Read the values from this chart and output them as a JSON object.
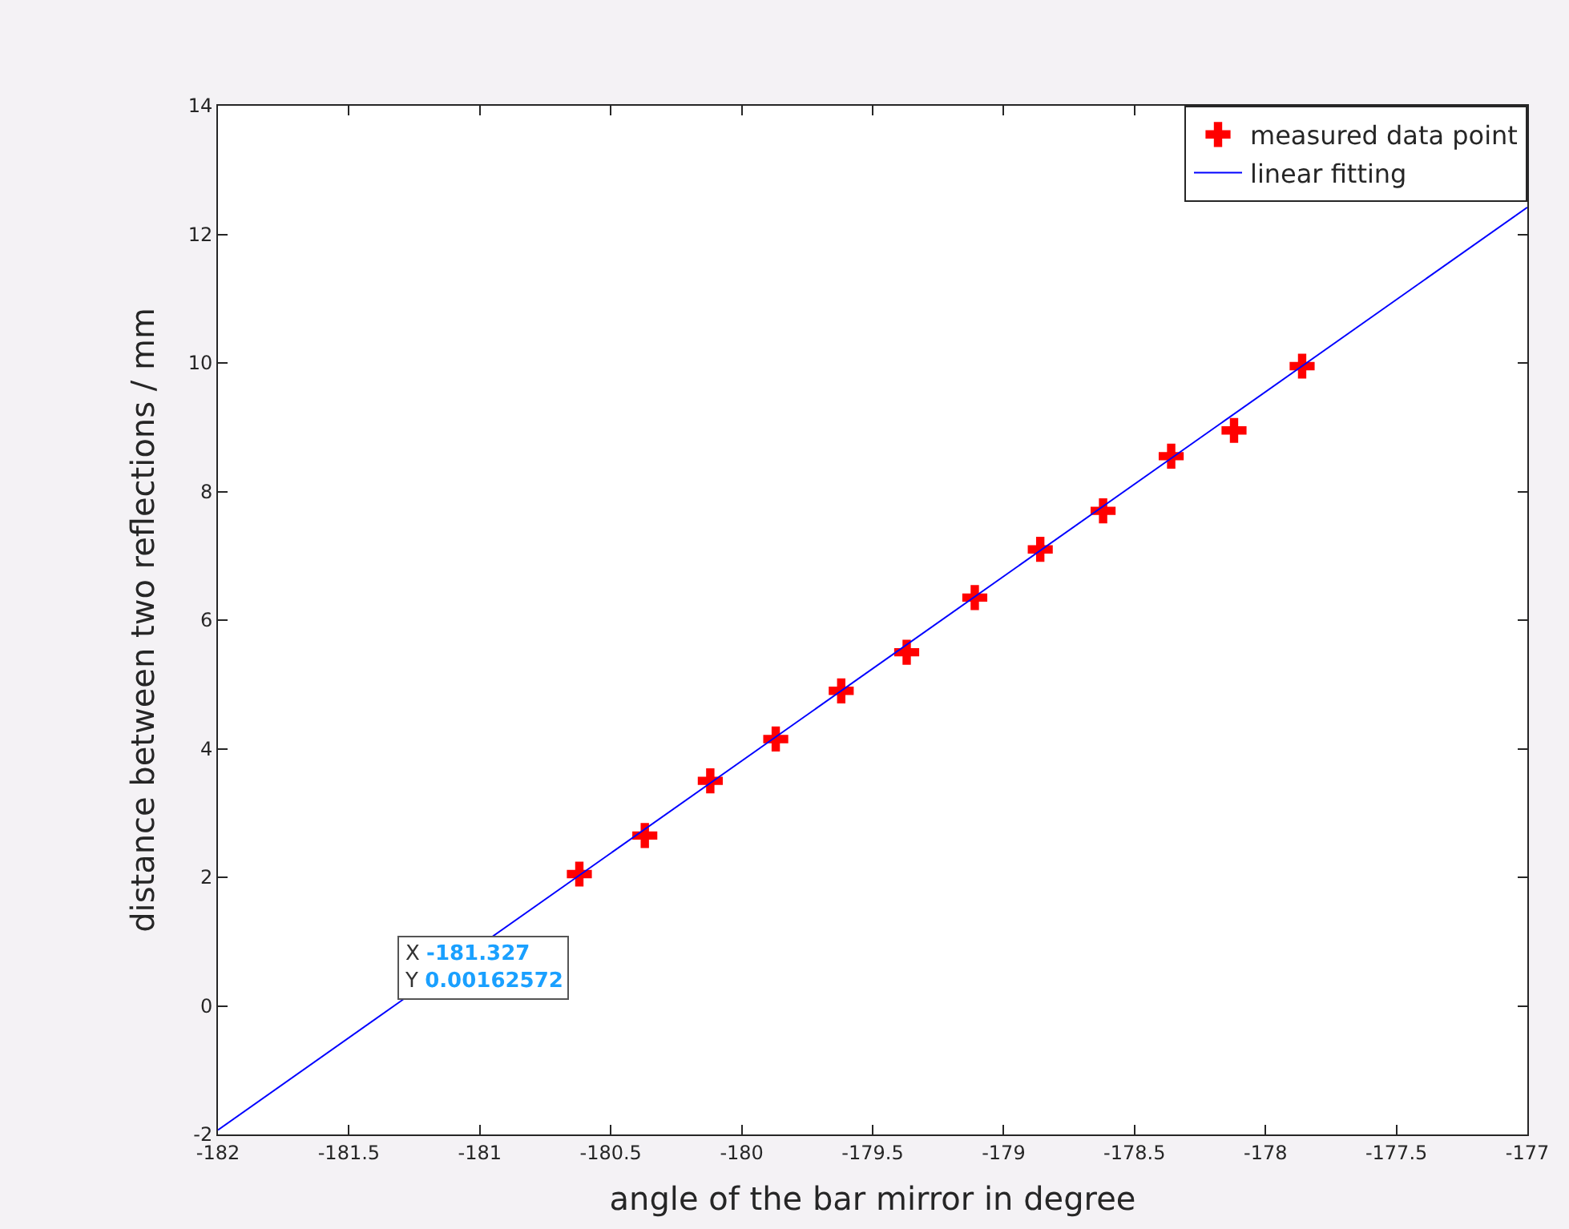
{
  "chart_data": {
    "type": "scatter",
    "xlabel": "angle of the bar mirror in degree",
    "ylabel": "distance between two reflections / mm",
    "xlim": [
      -182,
      -177
    ],
    "xticks": [
      -182,
      -181.5,
      -181,
      -180.5,
      -180,
      -179.5,
      -179,
      -178.5,
      -178,
      -177.5,
      -177
    ],
    "ylim": [
      -2,
      14
    ],
    "yticks": [
      -2,
      0,
      2,
      4,
      6,
      8,
      10,
      12,
      14
    ],
    "grid": false,
    "legend": "top right",
    "series": [
      {
        "name": "measured data point",
        "marker": "cross",
        "color": "#ff0000",
        "x": [
          -180.62,
          -180.37,
          -180.12,
          -179.87,
          -179.62,
          -179.37,
          -179.11,
          -178.86,
          -178.62,
          -178.36,
          -178.12,
          -177.86
        ],
        "values": [
          2.05,
          2.65,
          3.5,
          4.15,
          4.9,
          5.5,
          6.35,
          7.1,
          7.7,
          8.55,
          8.95,
          9.95
        ]
      },
      {
        "name": "linear fitting",
        "type": "line",
        "marker": "none",
        "line_style": "solid",
        "color": "#0000ff",
        "x": [
          -182,
          -177
        ],
        "values": [
          -1.93,
          12.42
        ]
      }
    ],
    "annotations": [
      {
        "text": "X -181.327\nY 0.00162572",
        "x": -181.327,
        "y": 0.00162572
      }
    ]
  }
}
